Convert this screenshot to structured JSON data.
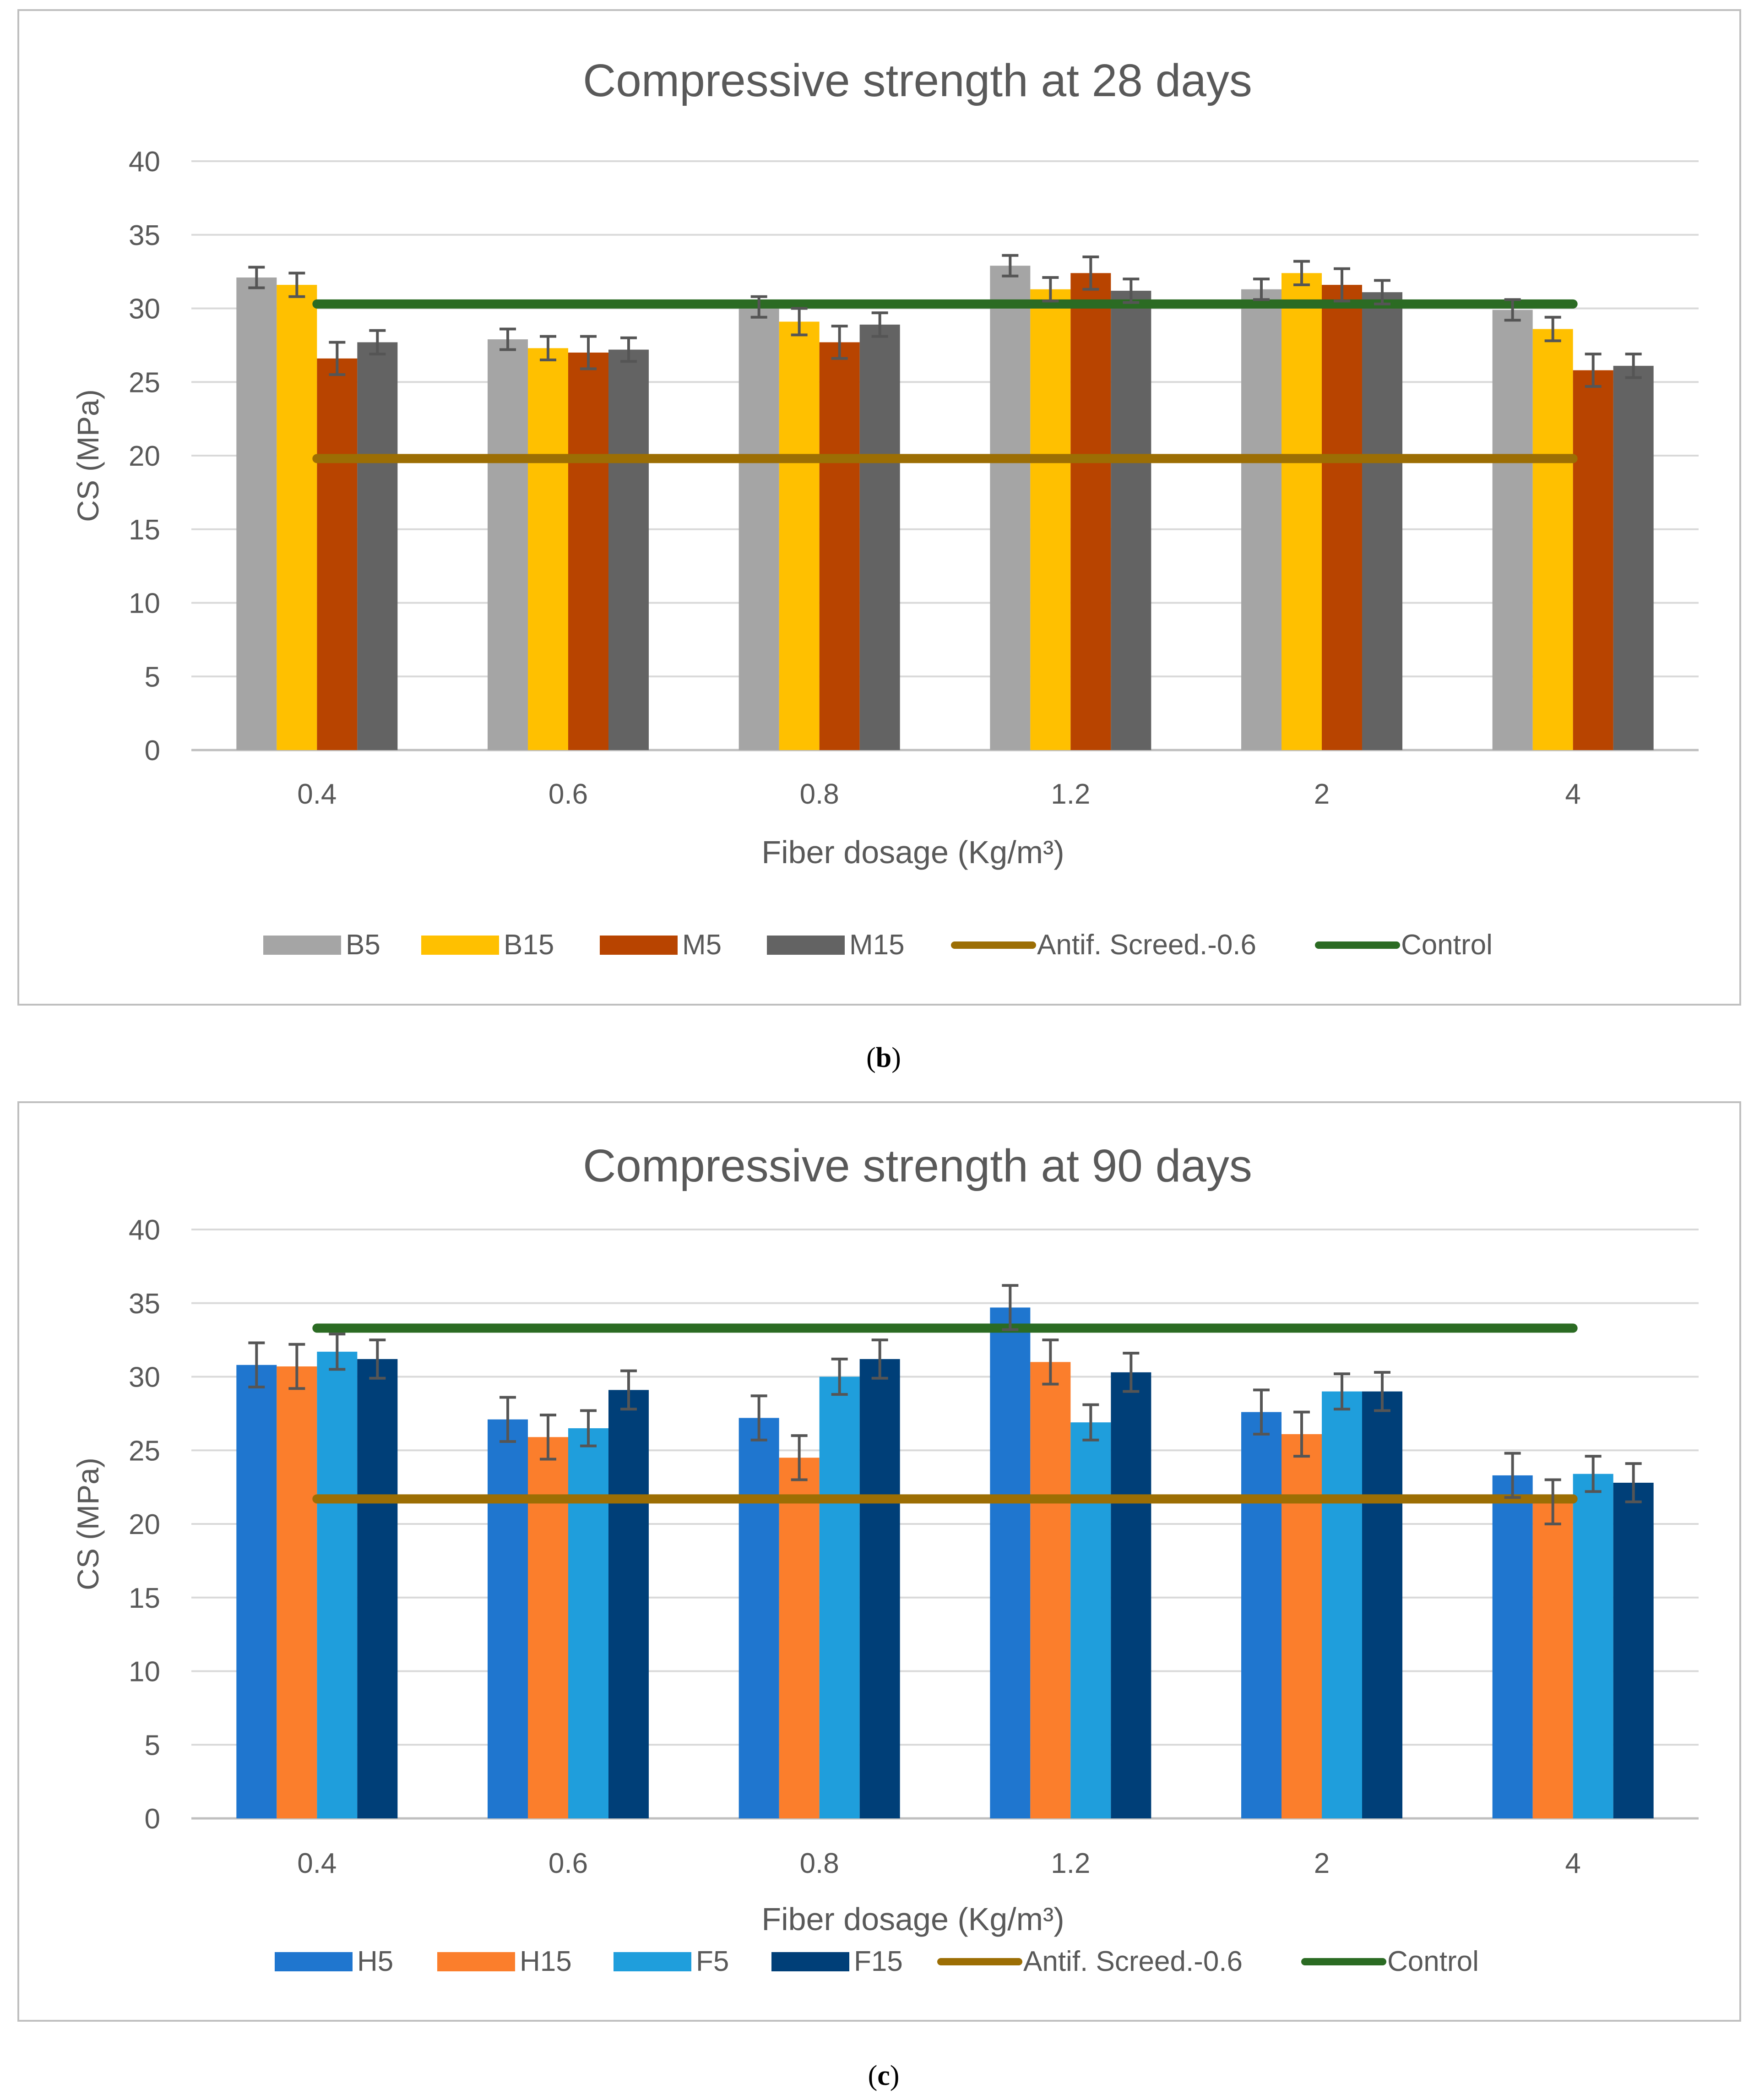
{
  "chart_data": [
    {
      "type": "bar",
      "title": "Compressive strength at 28 days",
      "xlabel": "Fiber dosage (Kg/m³)",
      "ylabel": "CS (MPa)",
      "ylim": [
        0,
        40
      ],
      "yticks": [
        "0",
        "5",
        "10",
        "15",
        "20",
        "25",
        "30",
        "35",
        "40"
      ],
      "categories": [
        "0.4",
        "0.6",
        "0.8",
        "1.2",
        "2",
        "4"
      ],
      "series": [
        {
          "name": "B5",
          "color": "#a5a5a5",
          "values": [
            32.1,
            27.9,
            30.1,
            32.9,
            31.3,
            29.9
          ],
          "errors": [
            0.7,
            0.7,
            0.7,
            0.7,
            0.7,
            0.7
          ]
        },
        {
          "name": "B15",
          "color": "#ffc000",
          "values": [
            31.6,
            27.3,
            29.1,
            31.3,
            32.4,
            28.6
          ],
          "errors": [
            0.8,
            0.8,
            0.9,
            0.8,
            0.8,
            0.8
          ]
        },
        {
          "name": "M5",
          "color": "#b84400",
          "values": [
            26.6,
            27.0,
            27.7,
            32.4,
            31.6,
            25.8
          ],
          "errors": [
            1.1,
            1.1,
            1.1,
            1.1,
            1.1,
            1.1
          ]
        },
        {
          "name": "M15",
          "color": "#636363",
          "values": [
            27.7,
            27.2,
            28.9,
            31.2,
            31.1,
            26.1
          ],
          "errors": [
            0.8,
            0.8,
            0.8,
            0.8,
            0.8,
            0.8
          ]
        }
      ],
      "reference_lines": [
        {
          "name": "Antif. Screed.-0.6",
          "color": "#9c6e04",
          "value": 19.8
        },
        {
          "name": "Control",
          "color": "#2b6b23",
          "value": 30.3
        }
      ],
      "caption": "(b)"
    },
    {
      "type": "bar",
      "title": "Compressive strength at 90 days",
      "xlabel": "Fiber dosage (Kg/m³)",
      "ylabel": "CS (MPa)",
      "ylim": [
        0,
        40
      ],
      "yticks": [
        "0",
        "5",
        "10",
        "15",
        "20",
        "25",
        "30",
        "35",
        "40"
      ],
      "categories": [
        "0.4",
        "0.6",
        "0.8",
        "1.2",
        "2",
        "4"
      ],
      "series": [
        {
          "name": "H5",
          "color": "#1f76cf",
          "values": [
            30.8,
            27.1,
            27.2,
            34.7,
            27.6,
            23.3
          ],
          "errors": [
            1.5,
            1.5,
            1.5,
            1.5,
            1.5,
            1.5
          ]
        },
        {
          "name": "H15",
          "color": "#fb7e2c",
          "values": [
            30.7,
            25.9,
            24.5,
            31.0,
            26.1,
            21.5
          ],
          "errors": [
            1.5,
            1.5,
            1.5,
            1.5,
            1.5,
            1.5
          ]
        },
        {
          "name": "F5",
          "color": "#1f9edc",
          "values": [
            31.7,
            26.5,
            30.0,
            26.9,
            29.0,
            23.4
          ],
          "errors": [
            1.2,
            1.2,
            1.2,
            1.2,
            1.2,
            1.2
          ]
        },
        {
          "name": "F15",
          "color": "#003f78",
          "values": [
            31.2,
            29.1,
            31.2,
            30.3,
            29.0,
            22.8
          ],
          "errors": [
            1.3,
            1.3,
            1.3,
            1.3,
            1.3,
            1.3
          ]
        }
      ],
      "reference_lines": [
        {
          "name": "Antif. Screed.-0.6",
          "color": "#9c6e04",
          "value": 21.7
        },
        {
          "name": "Control",
          "color": "#2b6b23",
          "value": 33.3
        }
      ],
      "caption": "(c)"
    }
  ]
}
